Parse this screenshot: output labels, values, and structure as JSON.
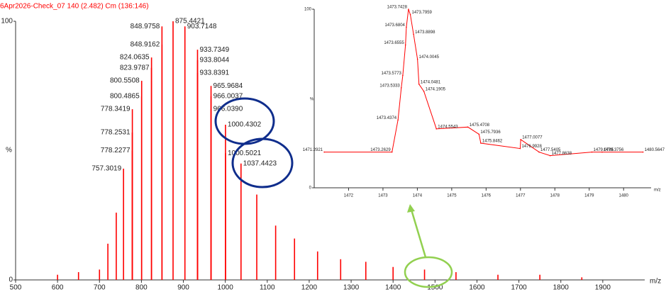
{
  "chart_data": [
    {
      "type": "stem",
      "title": "6Apr2026-Check_07 140 (2.482) Cm (136:146)",
      "y_label": "%",
      "x_label": "m/z",
      "color": "#ff0000",
      "x": [
        600,
        650,
        700,
        720,
        740,
        757.3019,
        778.2277,
        778.2531,
        778.3419,
        800.4865,
        800.5508,
        823.9787,
        824.0635,
        848.9162,
        848.9758,
        875.4421,
        903.7148,
        933.7349,
        933.8044,
        933.8391,
        965.9684,
        966.0037,
        966.039,
        1000.4302,
        1000.5021,
        1037.4423,
        1075,
        1120,
        1165,
        1220,
        1275,
        1335,
        1400,
        1475,
        1550,
        1650,
        1750,
        1850
      ],
      "peak_labels": [
        null,
        null,
        null,
        null,
        null,
        "757.3019",
        "778.2277",
        "778.2531",
        "778.3419",
        "800.4865",
        "800.5508",
        "823.9787",
        "824.0635",
        "848.9162",
        "848.9758",
        "875.4421",
        "903.7148",
        "933.7349",
        "933.8044",
        "933.8391",
        "965.9684",
        "966.0037",
        "966.0390",
        "1000.4302",
        "1000.5021",
        "1037.4423",
        null,
        null,
        null,
        null,
        null,
        null,
        null,
        null,
        null,
        null,
        null,
        null
      ],
      "values": [
        2,
        3,
        4,
        14,
        26,
        43,
        50,
        57,
        66,
        71,
        77,
        82,
        86,
        91,
        98,
        100,
        98,
        89,
        85,
        80,
        75,
        71,
        66,
        60,
        49,
        45,
        33,
        21,
        16,
        11,
        8,
        7,
        5,
        4,
        3,
        2,
        2,
        1
      ],
      "xlim": [
        500,
        2000
      ],
      "ylim": [
        0,
        100
      ],
      "xticks": [
        500,
        600,
        700,
        800,
        900,
        1000,
        1100,
        1200,
        1300,
        1400,
        1500,
        1600,
        1700,
        1800,
        1900
      ],
      "yticks": [
        0,
        100
      ]
    },
    {
      "type": "line",
      "y_label": "%",
      "x_label": "m/z",
      "color": "#ff0000",
      "x": [
        1471.2921,
        1473.2629,
        1473.4374,
        1473.5333,
        1473.5773,
        1473.6555,
        1473.6804,
        1473.7428,
        1473.7959,
        1473.8898,
        1474.0045,
        1474.0481,
        1474.1905,
        1474.5543,
        1475.4708,
        1475.7936,
        1475.8462,
        1476.9928,
        1477.0077,
        1477.5405,
        1477.8638,
        1479.0785,
        1479.3756,
        1480.5647
      ],
      "peak_labels": [
        "1471.2921",
        "1473.2629",
        "1473.4374",
        "1473.5333",
        "1473.5773",
        "1473.6555",
        "1473.6804",
        "1473.7428",
        "1473.7959",
        "1473.8898",
        "1474.0045",
        "1474.0481",
        "1474.1905",
        "1474.5543",
        "1475.4708",
        "1475.7936",
        "1475.8462",
        "1476.9928",
        "1477.0077",
        "1477.5405",
        "1477.8638",
        "1479.0785",
        "1479.3756",
        "1480.5647"
      ],
      "values": [
        20,
        20,
        38,
        56,
        63,
        80,
        90,
        100,
        97,
        86,
        72,
        58,
        54,
        33,
        34,
        30,
        25,
        22,
        27,
        20,
        18,
        20,
        20,
        20
      ],
      "xlim": [
        1471,
        1480.8
      ],
      "ylim": [
        0,
        100
      ],
      "xticks": [
        1472,
        1473,
        1474,
        1475,
        1476,
        1477,
        1478,
        1479,
        1480
      ],
      "yticks": [
        0,
        100
      ]
    }
  ]
}
